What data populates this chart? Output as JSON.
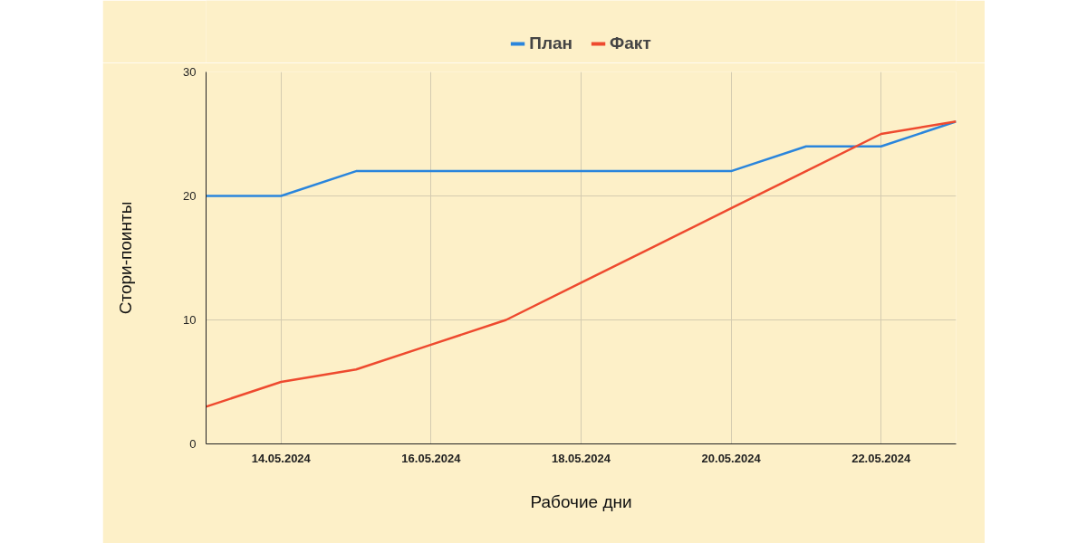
{
  "chart_data": {
    "type": "line",
    "xlabel": "Рабочие дни",
    "ylabel": "Стори-поинты",
    "x": [
      "2024-05-13",
      "2024-05-14",
      "2024-05-15",
      "2024-05-16",
      "2024-05-17",
      "2024-05-18",
      "2024-05-19",
      "2024-05-20",
      "2024-05-21",
      "2024-05-22",
      "2024-05-23"
    ],
    "series": [
      {
        "name": "План",
        "color": "#2a85dc",
        "values": [
          20,
          20,
          22,
          22,
          22,
          22,
          22,
          22,
          24,
          24,
          26
        ]
      },
      {
        "name": "Факт",
        "color": "#ee4a2f",
        "values": [
          3,
          5,
          6,
          8,
          10,
          13,
          16,
          19,
          22,
          25,
          26
        ]
      }
    ],
    "xlim": [
      "2024-05-13",
      "2024-05-23"
    ],
    "xticks": [
      {
        "value": "2024-05-14",
        "label": "14.05.2024"
      },
      {
        "value": "2024-05-16",
        "label": "16.05.2024"
      },
      {
        "value": "2024-05-18",
        "label": "18.05.2024"
      },
      {
        "value": "2024-05-20",
        "label": "20.05.2024"
      },
      {
        "value": "2024-05-22",
        "label": "22.05.2024"
      }
    ],
    "ylim": [
      0,
      30
    ],
    "yticks": [
      0,
      10,
      20,
      30
    ],
    "grid": true,
    "legend": "top",
    "marker": "none",
    "line_style": "solid"
  }
}
